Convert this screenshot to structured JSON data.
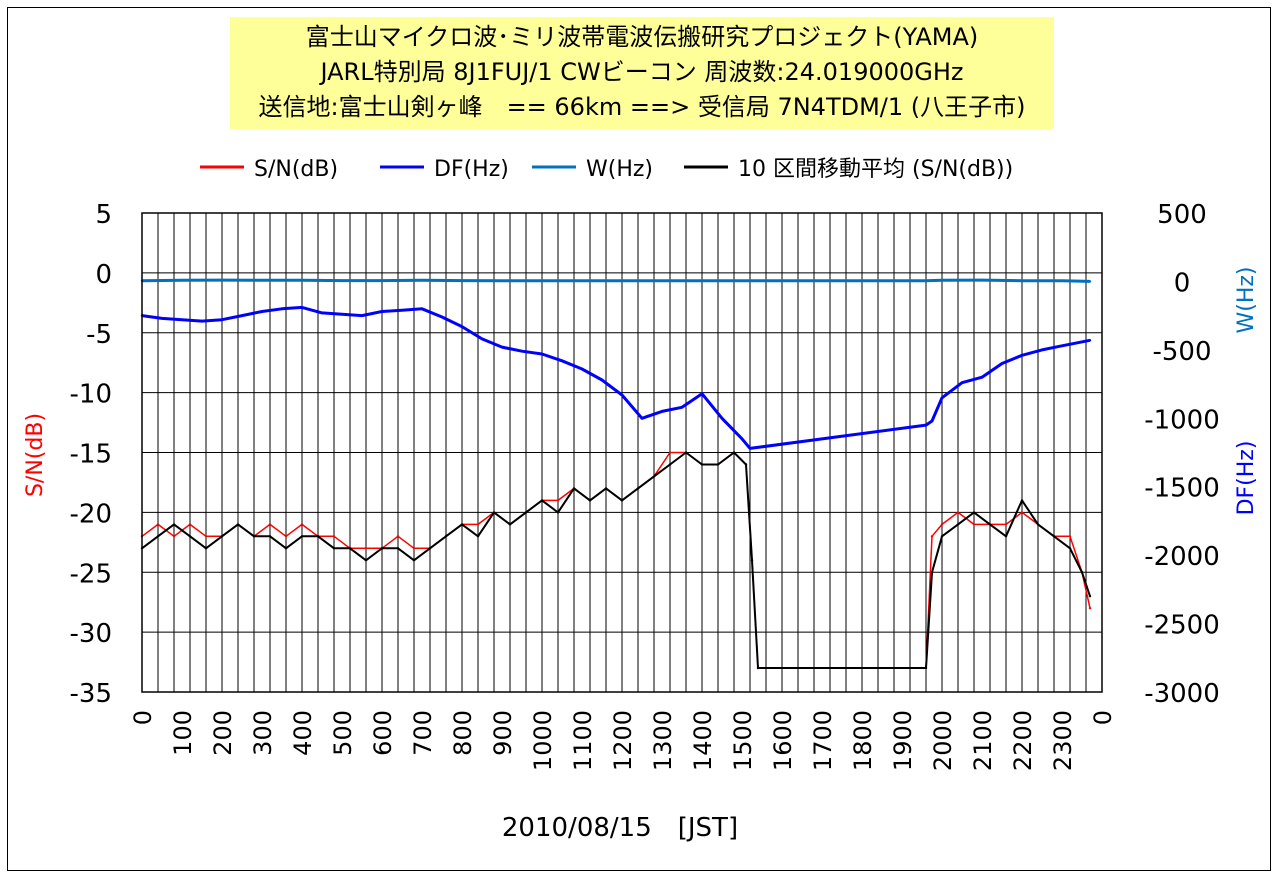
{
  "chart_data": {
    "type": "line",
    "title": [
      "富士山マイクロ波･ミリ波帯電波伝搬研究プロジェクト(YAMA)",
      "JARL特別局 8J1FUJ/1 CWビーコン 周波数:24.019000GHz",
      "送信地:富士山剣ヶ峰　== 66km ==> 受信局 7N4TDM/1 (八王子市)"
    ],
    "xlabel": "2010/08/15　[JST]",
    "ylabel_left": "S/N(dB)",
    "ylabel_right_upper": "W(Hz)",
    "ylabel_right_lower": "DF(Hz)",
    "y_left_lim": [
      -35,
      5
    ],
    "y_left_ticks": [
      "5",
      "0",
      "-5",
      "-10",
      "-15",
      "-20",
      "-25",
      "-30",
      "-35"
    ],
    "y_right_lim": [
      -3000,
      500
    ],
    "y_right_ticks": [
      "500",
      "0",
      "-500",
      "-1000",
      "-1500",
      "-2000",
      "-2500",
      "-3000"
    ],
    "x_ticks": [
      "0",
      "100",
      "200",
      "300",
      "400",
      "500",
      "600",
      "700",
      "800",
      "900",
      "1000",
      "1100",
      "1200",
      "1300",
      "1400",
      "1500",
      "1600",
      "1700",
      "1800",
      "1900",
      "2000",
      "2100",
      "2200",
      "2300",
      "0"
    ],
    "legend_position": "top",
    "legend": [
      {
        "name": "S/N(dB)",
        "color": "#ff0000"
      },
      {
        "name": "DF(Hz)",
        "color": "#0000ff"
      },
      {
        "name": "W(Hz)",
        "color": "#0070c0"
      },
      {
        "name": "10 区間移動平均 (S/N(dB))",
        "color": "#000000"
      }
    ],
    "grid": true,
    "series": [
      {
        "name": "S/N(dB)",
        "axis": "left",
        "color": "#ff0000",
        "x": [
          0,
          40,
          80,
          120,
          160,
          200,
          240,
          280,
          320,
          360,
          400,
          440,
          480,
          520,
          560,
          600,
          640,
          680,
          720,
          760,
          800,
          840,
          880,
          920,
          960,
          1000,
          1040,
          1080,
          1120,
          1160,
          1200,
          1240,
          1280,
          1320,
          1360,
          1400,
          1440,
          1480,
          1510,
          1525,
          1540,
          1960,
          1975,
          2000,
          2040,
          2080,
          2120,
          2160,
          2200,
          2240,
          2280,
          2320,
          2350,
          2370
        ],
        "values": [
          -22,
          -21,
          -22,
          -21,
          -22,
          -22,
          -21,
          -22,
          -21,
          -22,
          -21,
          -22,
          -22,
          -23,
          -23,
          -23,
          -22,
          -23,
          -23,
          -22,
          -21,
          -21,
          -20,
          -21,
          -20,
          -19,
          -19,
          -18,
          -19,
          -18,
          -19,
          -18,
          -17,
          -15,
          -15,
          -16,
          -16,
          -15,
          -16,
          -24,
          -33,
          -33,
          -22,
          -21,
          -20,
          -21,
          -21,
          -21,
          -20,
          -21,
          -22,
          -22,
          -25,
          -28
        ]
      },
      {
        "name": "DF(Hz)",
        "axis": "right",
        "color": "#0000ff",
        "x": [
          0,
          50,
          100,
          150,
          200,
          250,
          300,
          350,
          400,
          450,
          500,
          550,
          600,
          650,
          700,
          750,
          800,
          850,
          900,
          950,
          1000,
          1050,
          1100,
          1150,
          1200,
          1250,
          1300,
          1350,
          1400,
          1450,
          1500,
          1520,
          1960,
          1975,
          2000,
          2050,
          2100,
          2150,
          2200,
          2250,
          2300,
          2370
        ],
        "values": [
          -250,
          -270,
          -280,
          -290,
          -280,
          -250,
          -220,
          -200,
          -190,
          -230,
          -240,
          -250,
          -220,
          -210,
          -200,
          -260,
          -330,
          -420,
          -480,
          -510,
          -530,
          -580,
          -640,
          -720,
          -830,
          -1000,
          -950,
          -920,
          -820,
          -1000,
          -1150,
          -1220,
          -1050,
          -1020,
          -850,
          -740,
          -700,
          -600,
          -540,
          -500,
          -470,
          -430
        ]
      },
      {
        "name": "W(Hz)",
        "axis": "right",
        "color": "#0070c0",
        "x": [
          0,
          100,
          200,
          300,
          400,
          500,
          600,
          700,
          800,
          900,
          1000,
          1100,
          1200,
          1300,
          1400,
          1500,
          1520,
          1960,
          2000,
          2100,
          2200,
          2300,
          2370
        ],
        "values": [
          5,
          8,
          10,
          8,
          8,
          6,
          6,
          8,
          6,
          5,
          5,
          5,
          5,
          5,
          5,
          5,
          5,
          5,
          8,
          10,
          5,
          5,
          0
        ]
      },
      {
        "name": "10 区間移動平均 (S/N(dB))",
        "axis": "left",
        "color": "#000000",
        "x": [
          0,
          40,
          80,
          120,
          160,
          200,
          240,
          280,
          320,
          360,
          400,
          440,
          480,
          520,
          560,
          600,
          640,
          680,
          720,
          760,
          800,
          840,
          880,
          920,
          960,
          1000,
          1040,
          1080,
          1120,
          1160,
          1200,
          1240,
          1280,
          1320,
          1360,
          1400,
          1440,
          1480,
          1510,
          1525,
          1540,
          1960,
          1975,
          2000,
          2040,
          2080,
          2120,
          2160,
          2200,
          2240,
          2280,
          2320,
          2350,
          2370
        ],
        "values": [
          -23,
          -22,
          -21,
          -22,
          -23,
          -22,
          -21,
          -22,
          -22,
          -23,
          -22,
          -22,
          -23,
          -23,
          -24,
          -23,
          -23,
          -24,
          -23,
          -22,
          -21,
          -22,
          -20,
          -21,
          -20,
          -19,
          -20,
          -18,
          -19,
          -18,
          -19,
          -18,
          -17,
          -16,
          -15,
          -16,
          -16,
          -15,
          -16,
          -24,
          -33,
          -33,
          -25,
          -22,
          -21,
          -20,
          -21,
          -22,
          -19,
          -21,
          -22,
          -23,
          -25,
          -27
        ]
      }
    ]
  }
}
